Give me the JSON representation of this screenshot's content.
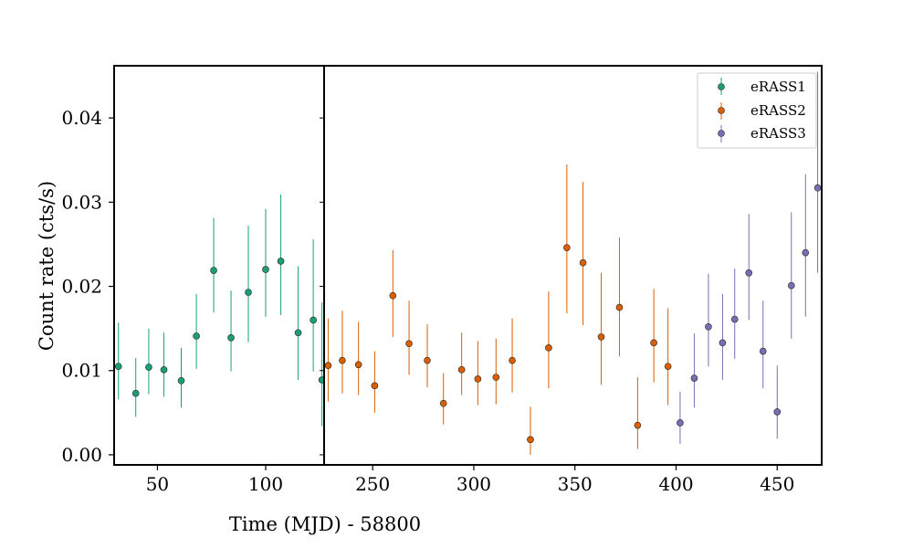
{
  "chart_data": {
    "type": "scatter",
    "xlabel": "Time (MJD) - 58800",
    "ylabel": "Count rate (cts/s)",
    "ylim": [
      -0.0012,
      0.0462
    ],
    "yticks": [
      0.0,
      0.01,
      0.02,
      0.03,
      0.04
    ],
    "ytick_labels": [
      "0.00",
      "0.01",
      "0.02",
      "0.03",
      "0.04"
    ],
    "broken_x_axis": true,
    "grid": false,
    "legend_position": "top-right",
    "panels": [
      {
        "xlim": [
          30,
          127
        ],
        "xticks": [
          50,
          100
        ],
        "xtick_labels": [
          "50",
          "100"
        ]
      },
      {
        "xlim": [
          226,
          472
        ],
        "xticks": [
          250,
          300,
          350,
          400,
          450
        ],
        "xtick_labels": [
          "250",
          "300",
          "350",
          "400",
          "450"
        ]
      }
    ],
    "series": [
      {
        "name": "eRASS1",
        "color": "#1b9e77",
        "points": [
          {
            "x": 32,
            "y": 0.0105,
            "lo": 0.0066,
            "hi": 0.0157
          },
          {
            "x": 40,
            "y": 0.0073,
            "lo": 0.0045,
            "hi": 0.0115
          },
          {
            "x": 46,
            "y": 0.0104,
            "lo": 0.0072,
            "hi": 0.015
          },
          {
            "x": 53,
            "y": 0.0101,
            "lo": 0.0069,
            "hi": 0.0145
          },
          {
            "x": 61,
            "y": 0.0088,
            "lo": 0.0056,
            "hi": 0.0127
          },
          {
            "x": 68,
            "y": 0.0141,
            "lo": 0.0102,
            "hi": 0.0191
          },
          {
            "x": 76,
            "y": 0.0219,
            "lo": 0.0169,
            "hi": 0.0281
          },
          {
            "x": 84,
            "y": 0.0139,
            "lo": 0.0099,
            "hi": 0.0195
          },
          {
            "x": 92,
            "y": 0.0193,
            "lo": 0.0134,
            "hi": 0.0272
          },
          {
            "x": 100,
            "y": 0.022,
            "lo": 0.0164,
            "hi": 0.0292
          },
          {
            "x": 107,
            "y": 0.023,
            "lo": 0.0166,
            "hi": 0.0309
          },
          {
            "x": 115,
            "y": 0.0145,
            "lo": 0.0089,
            "hi": 0.0224
          },
          {
            "x": 122,
            "y": 0.016,
            "lo": 0.0099,
            "hi": 0.0256
          },
          {
            "x": 126,
            "y": 0.0089,
            "lo": 0.0034,
            "hi": 0.0181
          }
        ]
      },
      {
        "name": "eRASS2",
        "color": "#d95f02",
        "points": [
          {
            "x": 228,
            "y": 0.0106,
            "lo": 0.0063,
            "hi": 0.0162
          },
          {
            "x": 235,
            "y": 0.0112,
            "lo": 0.0073,
            "hi": 0.0171
          },
          {
            "x": 243,
            "y": 0.0107,
            "lo": 0.0071,
            "hi": 0.0158
          },
          {
            "x": 251,
            "y": 0.0082,
            "lo": 0.005,
            "hi": 0.0123
          },
          {
            "x": 260,
            "y": 0.0189,
            "lo": 0.014,
            "hi": 0.0243
          },
          {
            "x": 268,
            "y": 0.0132,
            "lo": 0.0095,
            "hi": 0.0183
          },
          {
            "x": 277,
            "y": 0.0112,
            "lo": 0.008,
            "hi": 0.0155
          },
          {
            "x": 285,
            "y": 0.0061,
            "lo": 0.0036,
            "hi": 0.0097
          },
          {
            "x": 294,
            "y": 0.0101,
            "lo": 0.0071,
            "hi": 0.0145
          },
          {
            "x": 302,
            "y": 0.009,
            "lo": 0.0059,
            "hi": 0.0135
          },
          {
            "x": 311,
            "y": 0.0092,
            "lo": 0.006,
            "hi": 0.0138
          },
          {
            "x": 319,
            "y": 0.0112,
            "lo": 0.0074,
            "hi": 0.0162
          },
          {
            "x": 328,
            "y": 0.0018,
            "lo": 0.0,
            "hi": 0.0057
          },
          {
            "x": 337,
            "y": 0.0127,
            "lo": 0.0079,
            "hi": 0.0194
          },
          {
            "x": 346,
            "y": 0.0246,
            "lo": 0.0168,
            "hi": 0.0345
          },
          {
            "x": 354,
            "y": 0.0228,
            "lo": 0.0154,
            "hi": 0.0324
          },
          {
            "x": 363,
            "y": 0.014,
            "lo": 0.0083,
            "hi": 0.0216
          },
          {
            "x": 372,
            "y": 0.0175,
            "lo": 0.0117,
            "hi": 0.0258
          },
          {
            "x": 381,
            "y": 0.0035,
            "lo": 0.0007,
            "hi": 0.0092
          },
          {
            "x": 389,
            "y": 0.0133,
            "lo": 0.0086,
            "hi": 0.0197
          },
          {
            "x": 396,
            "y": 0.0105,
            "lo": 0.0059,
            "hi": 0.0174
          }
        ]
      },
      {
        "name": "eRASS3",
        "color": "#7570b3",
        "points": [
          {
            "x": 402,
            "y": 0.0038,
            "lo": 0.0013,
            "hi": 0.0075
          },
          {
            "x": 409,
            "y": 0.0091,
            "lo": 0.0056,
            "hi": 0.0144
          },
          {
            "x": 416,
            "y": 0.0152,
            "lo": 0.0105,
            "hi": 0.0215
          },
          {
            "x": 423,
            "y": 0.0133,
            "lo": 0.0089,
            "hi": 0.0191
          },
          {
            "x": 429,
            "y": 0.0161,
            "lo": 0.0114,
            "hi": 0.0221
          },
          {
            "x": 436,
            "y": 0.0216,
            "lo": 0.016,
            "hi": 0.0286
          },
          {
            "x": 443,
            "y": 0.0123,
            "lo": 0.0079,
            "hi": 0.0183
          },
          {
            "x": 450,
            "y": 0.0051,
            "lo": 0.0019,
            "hi": 0.0106
          },
          {
            "x": 457,
            "y": 0.0201,
            "lo": 0.0138,
            "hi": 0.0288
          },
          {
            "x": 464,
            "y": 0.024,
            "lo": 0.0164,
            "hi": 0.0333
          },
          {
            "x": 470,
            "y": 0.0317,
            "lo": 0.0216,
            "hi": 0.0455
          }
        ]
      }
    ]
  }
}
